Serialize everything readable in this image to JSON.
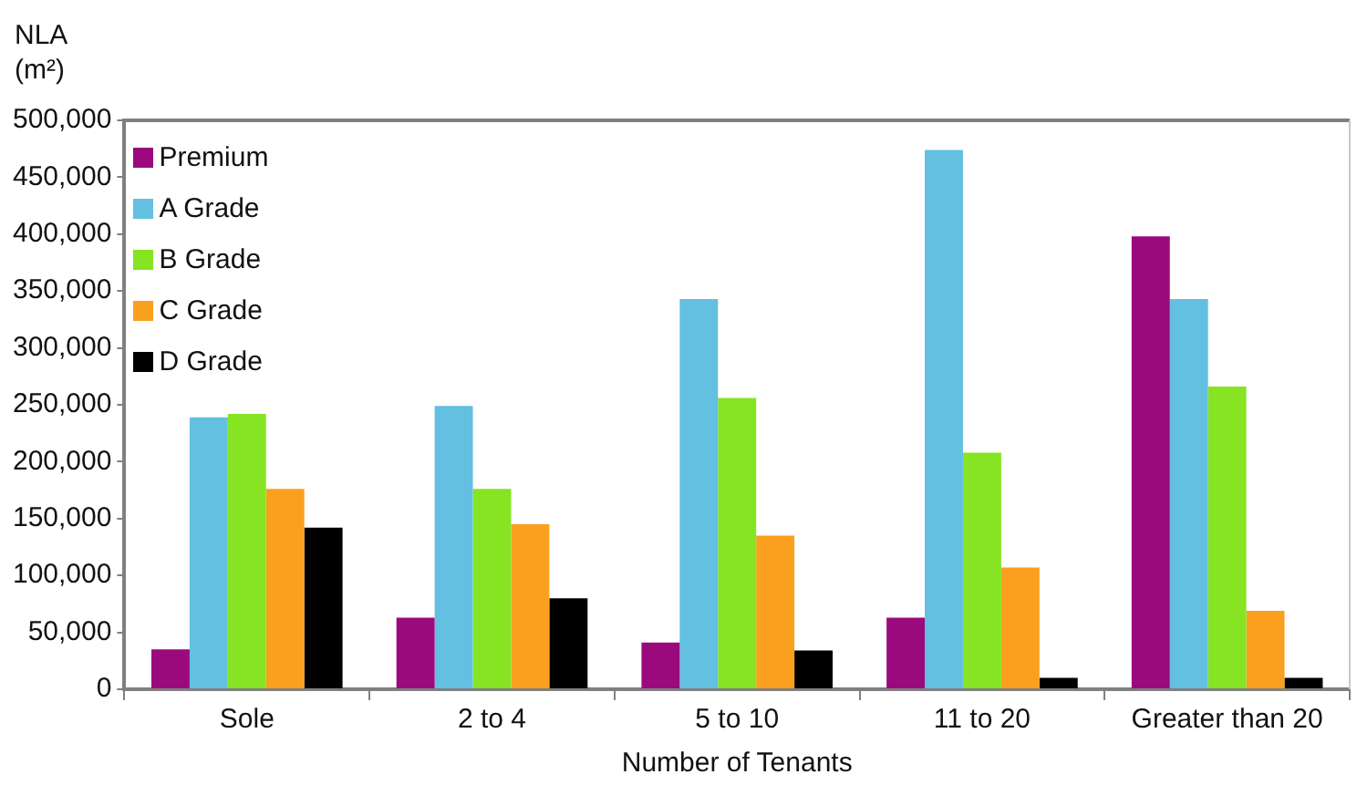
{
  "chart_data": {
    "type": "bar",
    "xlabel": "Number of Tenants",
    "ylabel": "NLA (m²)",
    "categories": [
      "Sole",
      "2 to 4",
      "5 to 10",
      "11 to 20",
      "Greater than 20"
    ],
    "series": [
      {
        "name": "Premium",
        "color": "#9b0a7d",
        "values": [
          35000,
          63000,
          41000,
          63000,
          398000
        ]
      },
      {
        "name": "A Grade",
        "color": "#63c0e0",
        "values": [
          239000,
          249000,
          343000,
          474000,
          343000
        ]
      },
      {
        "name": "B Grade",
        "color": "#86e422",
        "values": [
          242000,
          176000,
          256000,
          208000,
          266000
        ]
      },
      {
        "name": "C Grade",
        "color": "#fba01e",
        "values": [
          176000,
          145000,
          135000,
          107000,
          69000
        ]
      },
      {
        "name": "D Grade",
        "color": "#000000",
        "values": [
          142000,
          80000,
          34000,
          10000,
          10000
        ]
      }
    ],
    "ylim": [
      0,
      500000
    ],
    "yticks": [
      0,
      {
        "value": 50000,
        "label": "50,000"
      },
      {
        "value": 100000,
        "label": "100,000"
      },
      {
        "value": 150000,
        "label": "150,000"
      },
      {
        "value": 200000,
        "label": "200,000"
      },
      {
        "value": 250000,
        "label": "250,000"
      },
      {
        "value": 300000,
        "label": "300,000"
      },
      {
        "value": 350000,
        "label": "350,000"
      },
      {
        "value": 400000,
        "label": "400,000"
      },
      {
        "value": 450000,
        "label": "450,000"
      },
      {
        "value": 500000,
        "label": "500,000"
      }
    ],
    "legend": "top left"
  }
}
